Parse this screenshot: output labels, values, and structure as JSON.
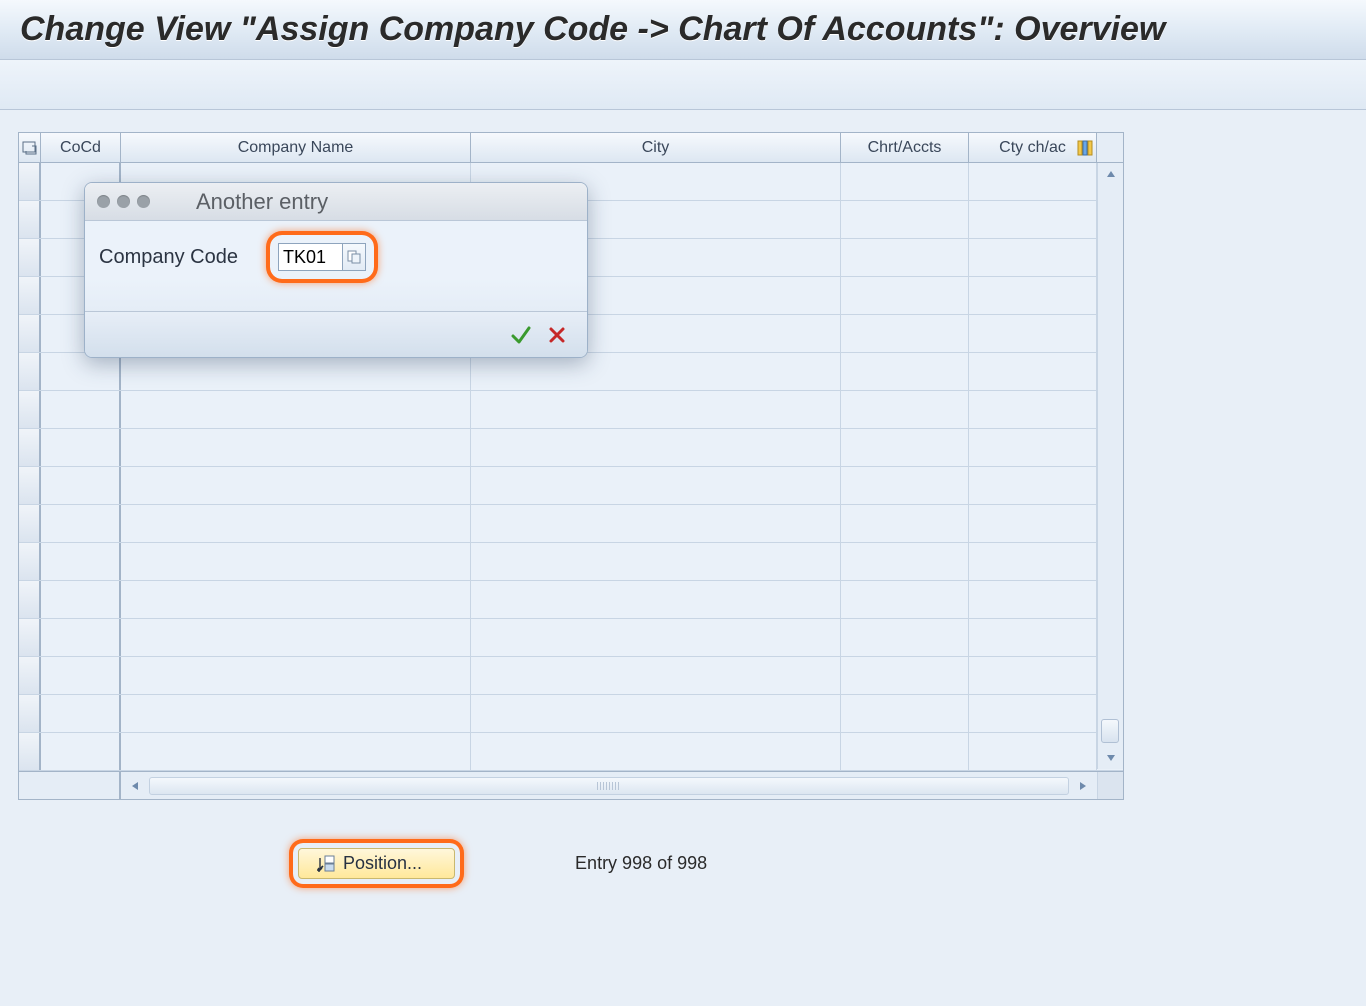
{
  "title": "Change View \"Assign Company Code -> Chart Of Accounts\": Overview",
  "table": {
    "columns": {
      "cocd": "CoCd",
      "company_name": "Company Name",
      "city": "City",
      "chrt_accts": "Chrt/Accts",
      "cty_ch_ac": "Cty ch/ac"
    },
    "row_count": 16
  },
  "popup": {
    "title": "Another entry",
    "field_label": "Company Code",
    "field_value": "TK01"
  },
  "footer": {
    "position_label": "Position...",
    "entry_text": "Entry 998 of 998"
  },
  "highlight_color": "#ff6b1a",
  "colors": {
    "page_bg": "#e8eff7",
    "header_grad_top": "#f5f9fd",
    "header_grad_bottom": "#cfdceb",
    "border": "#a3b4c8",
    "row_bg": "#eaf1f9"
  }
}
